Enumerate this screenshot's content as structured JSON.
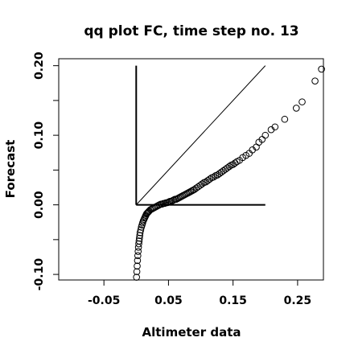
{
  "chart_data": {
    "type": "scatter",
    "title": "qq plot FC, time step no. 13",
    "xlabel": "Altimeter data",
    "ylabel": "Forecast",
    "xlim": [
      -0.12,
      0.29
    ],
    "ylim": [
      -0.108,
      0.21
    ],
    "x_ticks": [
      -0.05,
      0.05,
      0.15,
      0.25
    ],
    "x_tick_labels": [
      "-0.05",
      "0.05",
      "0.15",
      "0.25"
    ],
    "y_ticks": [
      -0.1,
      -0.05,
      0.0,
      0.05,
      0.1,
      0.15,
      0.2
    ],
    "y_tick_labels": [
      "-0.10",
      "",
      "0.00",
      "",
      "0.10",
      "",
      "0.20"
    ],
    "grid": false,
    "legend": "none",
    "reference_lines": [
      {
        "kind": "identity",
        "x": [
          0.0,
          0.2
        ],
        "y": [
          0.0,
          0.2
        ]
      },
      {
        "kind": "horizontal",
        "x": [
          0.0,
          0.2
        ],
        "y": [
          0.0,
          0.0
        ]
      },
      {
        "kind": "vertical",
        "x": [
          0.0,
          0.0
        ],
        "y": [
          0.0,
          0.2
        ]
      }
    ],
    "series": [
      {
        "x": [
          0.0005,
          0.001,
          0.0015,
          0.002,
          0.0025,
          0.003,
          0.0035,
          0.004,
          0.0045,
          0.005,
          0.0055,
          0.006,
          0.007,
          0.008,
          0.009,
          0.01,
          0.011,
          0.012,
          0.013,
          0.014,
          0.015,
          0.016,
          0.017,
          0.018,
          0.019,
          0.02,
          0.022,
          0.024,
          0.026,
          0.028,
          0.03,
          0.032,
          0.034,
          0.036,
          0.038,
          0.04,
          0.042,
          0.044,
          0.046,
          0.048,
          0.05,
          0.052,
          0.054,
          0.056,
          0.058,
          0.06,
          0.062,
          0.064,
          0.066,
          0.068,
          0.07,
          0.072,
          0.074,
          0.076,
          0.078,
          0.08,
          0.082,
          0.084,
          0.086,
          0.088,
          0.09,
          0.093,
          0.096,
          0.099,
          0.102,
          0.105,
          0.108,
          0.111,
          0.114,
          0.117,
          0.12,
          0.123,
          0.126,
          0.129,
          0.132,
          0.135,
          0.138,
          0.141,
          0.144,
          0.147,
          0.15,
          0.153,
          0.156,
          0.16,
          0.165,
          0.17,
          0.175,
          0.18,
          0.186,
          0.19,
          0.195,
          0.2,
          0.209,
          0.215,
          0.23,
          0.248,
          0.257,
          0.277,
          0.287
        ],
        "y": [
          -0.104,
          -0.096,
          -0.088,
          -0.08,
          -0.073,
          -0.067,
          -0.061,
          -0.056,
          -0.052,
          -0.048,
          -0.044,
          -0.04,
          -0.036,
          -0.032,
          -0.029,
          -0.026,
          -0.023,
          -0.021,
          -0.019,
          -0.017,
          -0.015,
          -0.013,
          -0.012,
          -0.011,
          -0.01,
          -0.009,
          -0.007,
          -0.006,
          -0.005,
          -0.004,
          -0.003,
          -0.002,
          -0.001,
          0.0,
          0.001,
          0.001,
          0.002,
          0.002,
          0.003,
          0.003,
          0.004,
          0.005,
          0.005,
          0.006,
          0.007,
          0.008,
          0.008,
          0.009,
          0.01,
          0.011,
          0.012,
          0.013,
          0.014,
          0.015,
          0.016,
          0.017,
          0.018,
          0.019,
          0.02,
          0.021,
          0.022,
          0.024,
          0.026,
          0.028,
          0.03,
          0.032,
          0.033,
          0.035,
          0.037,
          0.039,
          0.04,
          0.042,
          0.043,
          0.045,
          0.047,
          0.049,
          0.051,
          0.053,
          0.055,
          0.057,
          0.058,
          0.06,
          0.062,
          0.064,
          0.068,
          0.071,
          0.074,
          0.079,
          0.083,
          0.09,
          0.094,
          0.1,
          0.108,
          0.112,
          0.123,
          0.139,
          0.148,
          0.178,
          0.195
        ]
      }
    ]
  }
}
